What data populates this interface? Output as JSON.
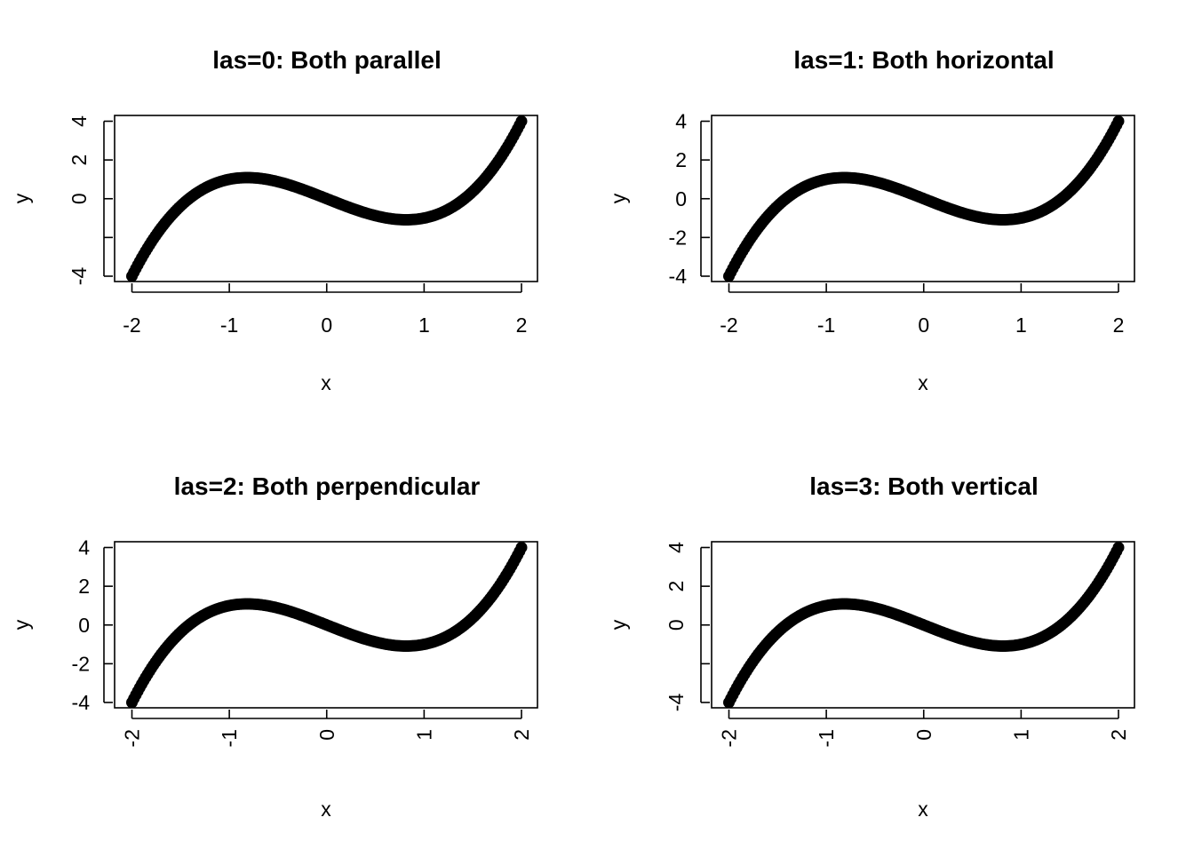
{
  "chart_data": [
    {
      "type": "scatter",
      "title": "las=0: Both parallel",
      "xlabel": "x",
      "ylabel": "y",
      "xlim": [
        -2,
        2
      ],
      "ylim": [
        -4,
        4
      ],
      "x_ticks": [
        "-2",
        "-1",
        "0",
        "1",
        "2"
      ],
      "y_ticks": [
        "-4",
        "",
        "0",
        "2",
        "4"
      ],
      "las": 0,
      "function": "y = x^3 - 2x",
      "x_range": [
        -2,
        2
      ],
      "grid": false
    },
    {
      "type": "scatter",
      "title": "las=1: Both horizontal",
      "xlabel": "x",
      "ylabel": "y",
      "xlim": [
        -2,
        2
      ],
      "ylim": [
        -4,
        4
      ],
      "x_ticks": [
        "-2",
        "-1",
        "0",
        "1",
        "2"
      ],
      "y_ticks": [
        "-4",
        "-2",
        "0",
        "2",
        "4"
      ],
      "las": 1,
      "function": "y = x^3 - 2x",
      "x_range": [
        -2,
        2
      ],
      "grid": false
    },
    {
      "type": "scatter",
      "title": "las=2: Both perpendicular",
      "xlabel": "x",
      "ylabel": "y",
      "xlim": [
        -2,
        2
      ],
      "ylim": [
        -4,
        4
      ],
      "x_ticks": [
        "-2",
        "-1",
        "0",
        "1",
        "2"
      ],
      "y_ticks": [
        "-4",
        "-2",
        "0",
        "2",
        "4"
      ],
      "las": 2,
      "function": "y = x^3 - 2x",
      "x_range": [
        -2,
        2
      ],
      "grid": false
    },
    {
      "type": "scatter",
      "title": "las=3: Both vertical",
      "xlabel": "x",
      "ylabel": "y",
      "xlim": [
        -2,
        2
      ],
      "ylim": [
        -4,
        4
      ],
      "x_ticks": [
        "-2",
        "-1",
        "0",
        "1",
        "2"
      ],
      "y_ticks": [
        "-4",
        "",
        "0",
        "2",
        "4"
      ],
      "las": 3,
      "function": "y = x^3 - 2x",
      "x_range": [
        -2,
        2
      ],
      "grid": false
    }
  ],
  "colors": {
    "points": "#000000",
    "axes": "#000000",
    "background": "#ffffff"
  }
}
